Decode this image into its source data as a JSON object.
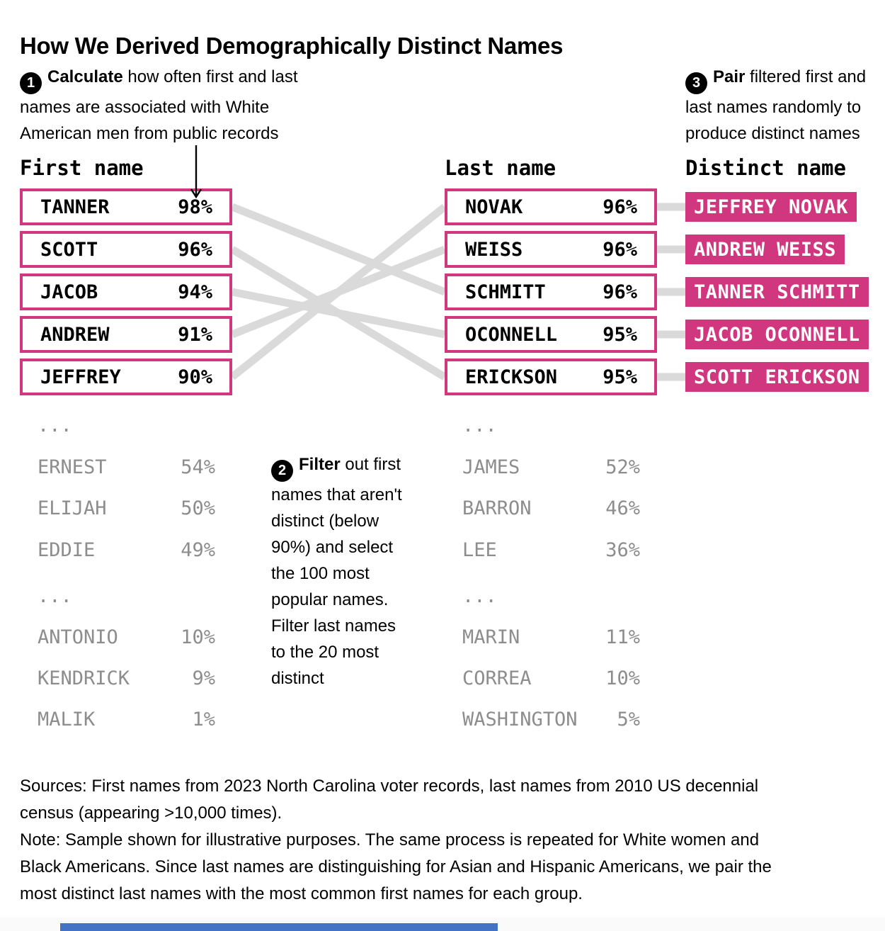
{
  "title": "How We Derived Demographically Distinct Names",
  "ellipsis": "...",
  "steps": {
    "step1": {
      "number": "1",
      "lead": "Calculate ",
      "text": "how often first and last\nnames are associated with White\nAmerican men from public records"
    },
    "step2": {
      "number": "2",
      "lead": "Filter ",
      "text": "out first\nnames that aren't\ndistinct (below\n90%) and select\nthe 100 most\npopular names.\nFilter last names\nto the 20 most\ndistinct"
    },
    "step3": {
      "number": "3",
      "lead": "Pair ",
      "text": "filtered first and\nlast names randomly to\nproduce distinct names"
    }
  },
  "first_names": {
    "header": "First name",
    "distinct": [
      {
        "name": "TANNER",
        "pct": "98%"
      },
      {
        "name": "SCOTT",
        "pct": "96%"
      },
      {
        "name": "JACOB",
        "pct": "94%"
      },
      {
        "name": "ANDREW",
        "pct": "91%"
      },
      {
        "name": "JEFFREY",
        "pct": "90%"
      }
    ],
    "common": [
      {
        "name": "ERNEST",
        "pct": "54%"
      },
      {
        "name": "ELIJAH",
        "pct": "50%"
      },
      {
        "name": "EDDIE",
        "pct": "49%"
      }
    ],
    "least": [
      {
        "name": "ANTONIO",
        "pct": "10%"
      },
      {
        "name": "KENDRICK",
        "pct": "9%"
      },
      {
        "name": "MALIK",
        "pct": "1%"
      }
    ]
  },
  "last_names": {
    "header": "Last name",
    "distinct": [
      {
        "name": "NOVAK",
        "pct": "96%"
      },
      {
        "name": "WEISS",
        "pct": "96%"
      },
      {
        "name": "SCHMITT",
        "pct": "96%"
      },
      {
        "name": "OCONNELL",
        "pct": "95%"
      },
      {
        "name": "ERICKSON",
        "pct": "95%"
      }
    ],
    "common": [
      {
        "name": "JAMES",
        "pct": "52%"
      },
      {
        "name": "BARRON",
        "pct": "46%"
      },
      {
        "name": "LEE",
        "pct": "36%"
      }
    ],
    "least": [
      {
        "name": "MARIN",
        "pct": "11%"
      },
      {
        "name": "CORREA",
        "pct": "10%"
      },
      {
        "name": "WASHINGTON",
        "pct": "5%"
      }
    ]
  },
  "distinct_names": {
    "header": "Distinct name",
    "badges": [
      "JEFFREY NOVAK",
      "ANDREW WEISS",
      "TANNER SCHMITT",
      "JACOB OCONNELL",
      "SCOTT ERICKSON"
    ]
  },
  "flow": {
    "pairs": [
      {
        "from": 0,
        "to": 2
      },
      {
        "from": 1,
        "to": 4
      },
      {
        "from": 2,
        "to": 3
      },
      {
        "from": 3,
        "to": 1
      },
      {
        "from": 4,
        "to": 0
      }
    ]
  },
  "footer": {
    "sources": "Sources: First names from 2023 North Carolina voter records, last names from 2010 US decennial\ncensus (appearing >10,000 times).",
    "note": "Note: Sample shown for illustrative purposes. The same process is repeated for White women and\nBlack Americans. Since last names are distinguishing for Asian and Hispanic Americans, we pair the\nmost distinct last names with the most common first names for each group."
  },
  "colors": {
    "pink": "#d1377e",
    "gray_text": "#8d8d8d",
    "connector": "#dadada",
    "blue_bar": "#4472c4"
  }
}
